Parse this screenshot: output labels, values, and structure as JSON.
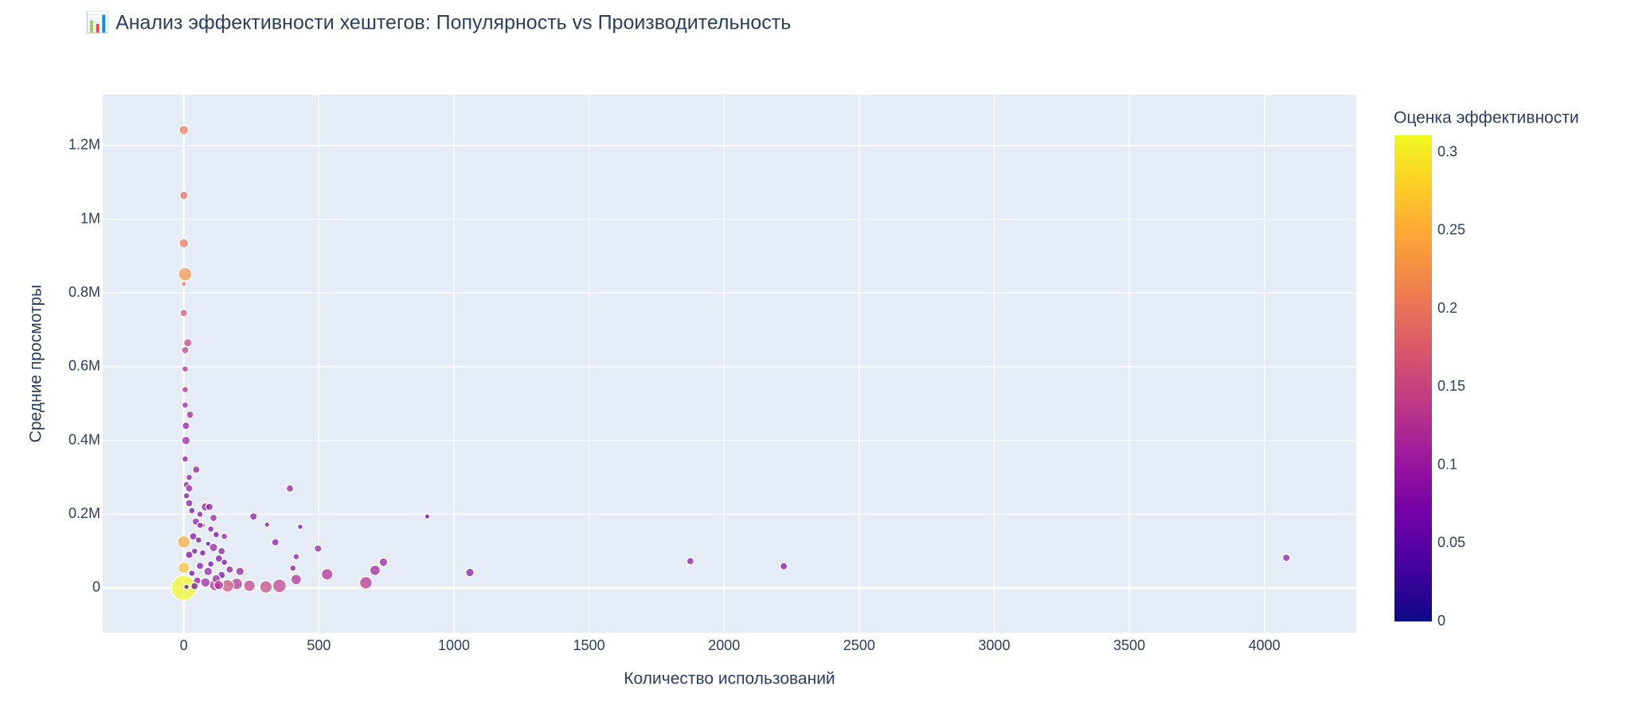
{
  "chart_data": {
    "type": "scatter",
    "title": "📊 Анализ эффективности хештегов: Популярность vs Производительность",
    "x_label": "Количество использований",
    "y_label": "Средние просмотры",
    "colorbar_title": "Оценка эффективности",
    "xlim": [
      -300,
      4340
    ],
    "ylim": [
      -121000,
      1338000
    ],
    "xticks": [
      0,
      500,
      1000,
      1500,
      2000,
      2500,
      3000,
      3500,
      4000
    ],
    "yticks": [
      0,
      {
        "value": 200000,
        "label": "0.2M"
      },
      {
        "value": 400000,
        "label": "0.4M"
      },
      {
        "value": 600000,
        "label": "0.6M"
      },
      {
        "value": 800000,
        "label": "0.8M"
      },
      {
        "value": 1000000,
        "label": "1M"
      },
      {
        "value": 1200000,
        "label": "1.2M"
      }
    ],
    "clim": [
      0,
      0.311
    ],
    "cticks": [
      0,
      0.05,
      0.1,
      0.15,
      0.2,
      0.25,
      0.3
    ],
    "colorscale": [
      "#0d0887",
      "#46039f",
      "#7201a8",
      "#9c179e",
      "#bd3786",
      "#d8576b",
      "#ed7953",
      "#fb9f3a",
      "#fdca26",
      "#f0f921"
    ],
    "grid": true,
    "series": [
      {
        "x": [
          0,
          0,
          0,
          0,
          5,
          0,
          0,
          15,
          5,
          5,
          5,
          5,
          23,
          8,
          8,
          46,
          393,
          258,
          308,
          431,
          901,
          339,
          497,
          739,
          708,
          531,
          674,
          1059,
          1875,
          2221,
          4081,
          416,
          404,
          416,
          304,
          354,
          243,
          196,
          162,
          208,
          116,
          10,
          20,
          30,
          80,
          95,
          60,
          110,
          45,
          70,
          100,
          150,
          120,
          35,
          55,
          90,
          110,
          140,
          40,
          70,
          20,
          130,
          150,
          100,
          60,
          170,
          90,
          30,
          140,
          120,
          50,
          80,
          40,
          10,
          130,
          60,
          20,
          10,
          5,
          20,
          0,
          0
        ],
        "y": [
          0,
          1242000,
          1065000,
          935000,
          851000,
          825000,
          746000,
          665000,
          645000,
          594000,
          538000,
          496000,
          470000,
          440000,
          400000,
          321000,
          270000,
          194000,
          172000,
          166000,
          194000,
          124000,
          107000,
          70000,
          48000,
          37000,
          14000,
          42000,
          73000,
          59000,
          82000,
          85000,
          54000,
          23000,
          3000,
          6000,
          6000,
          11000,
          6000,
          45000,
          8000,
          250000,
          230000,
          210000,
          220000,
          220000,
          200000,
          190000,
          180000,
          170000,
          160000,
          140000,
          145000,
          140000,
          130000,
          120000,
          110000,
          100000,
          100000,
          95000,
          90000,
          80000,
          70000,
          65000,
          60000,
          50000,
          45000,
          40000,
          35000,
          25000,
          20000,
          15000,
          5000,
          3000,
          8000,
          170000,
          300000,
          280000,
          350000,
          270000,
          125000,
          55000
        ],
        "sizes": [
          24,
          9,
          8,
          9,
          13,
          5,
          7,
          8,
          7,
          6,
          6,
          6,
          7,
          7,
          8,
          7,
          7,
          7,
          5,
          5,
          5,
          7,
          7,
          8,
          10,
          11,
          12,
          8,
          7,
          7,
          7,
          6,
          6,
          10,
          12,
          13,
          11,
          11,
          12,
          8,
          11,
          6,
          7,
          6,
          8,
          7,
          6,
          7,
          7,
          5,
          6,
          6,
          6,
          7,
          6,
          5,
          8,
          7,
          6,
          6,
          7,
          7,
          6,
          6,
          7,
          7,
          8,
          6,
          7,
          8,
          7,
          9,
          7,
          5,
          9,
          6,
          6,
          6,
          6,
          7,
          12,
          11
        ],
        "colors": [
          0.31,
          0.21,
          0.19,
          0.2,
          0.23,
          0.2,
          0.16,
          0.15,
          0.14,
          0.12,
          0.11,
          0.1,
          0.11,
          0.09,
          0.1,
          0.1,
          0.1,
          0.09,
          0.06,
          0.05,
          0.05,
          0.09,
          0.1,
          0.1,
          0.11,
          0.12,
          0.13,
          0.09,
          0.09,
          0.08,
          0.09,
          0.09,
          0.08,
          0.12,
          0.15,
          0.14,
          0.14,
          0.13,
          0.16,
          0.1,
          0.13,
          0.08,
          0.09,
          0.07,
          0.1,
          0.09,
          0.08,
          0.1,
          0.09,
          0.06,
          0.08,
          0.09,
          0.07,
          0.08,
          0.07,
          0.06,
          0.1,
          0.09,
          0.08,
          0.06,
          0.07,
          0.08,
          0.07,
          0.06,
          0.08,
          0.09,
          0.1,
          0.06,
          0.07,
          0.1,
          0.09,
          0.11,
          0.07,
          0.03,
          0.12,
          0.08,
          0.09,
          0.08,
          0.09,
          0.1,
          0.25,
          0.27
        ]
      }
    ]
  }
}
